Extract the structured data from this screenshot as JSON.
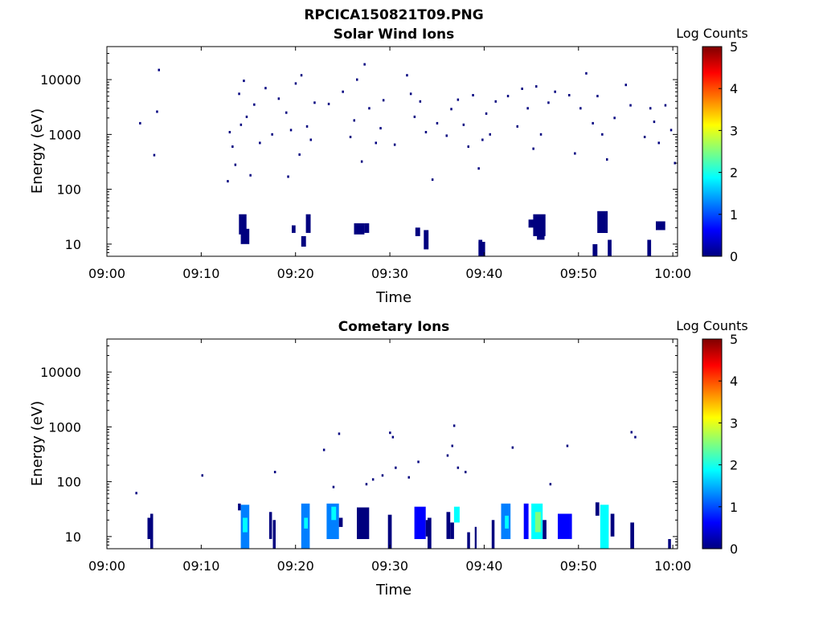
{
  "figure": {
    "title": "RPCICA150821T09.PNG"
  },
  "colormap": [
    "#00007f",
    "#0000ff",
    "#007fff",
    "#00ffff",
    "#7fff7f",
    "#ffff00",
    "#ff7f00",
    "#ff0000",
    "#7f0000"
  ],
  "chart_data": [
    {
      "type": "heatmap",
      "title": "Solar Wind Ions",
      "xlabel": "Time",
      "ylabel": "Energy (eV)",
      "x_tick_labels": [
        "09:00",
        "09:10",
        "09:20",
        "09:30",
        "09:40",
        "09:50",
        "10:00"
      ],
      "x_range_minutes": [
        0,
        60.5
      ],
      "y_scale": "log",
      "y_range": [
        6,
        40000
      ],
      "y_tick_labels": [
        "10",
        "100",
        "1000",
        "10000"
      ],
      "y_tick_values": [
        10,
        100,
        1000,
        10000
      ],
      "colorbar": {
        "label": "Log Counts",
        "range": [
          0,
          5
        ],
        "tick_labels": [
          "0",
          "1",
          "2",
          "3",
          "4",
          "5"
        ]
      },
      "points": [
        [
          3.5,
          1600,
          0.1
        ],
        [
          5.0,
          420,
          0.1
        ],
        [
          5.3,
          2600,
          0.1
        ],
        [
          5.5,
          15000,
          0.1
        ],
        [
          12.8,
          140,
          0.1
        ],
        [
          13.0,
          1100,
          0.2
        ],
        [
          13.3,
          600,
          0.2
        ],
        [
          13.6,
          280,
          0.2
        ],
        [
          14.0,
          5500,
          0.1
        ],
        [
          14.2,
          1500,
          0.1
        ],
        [
          14.5,
          9500,
          0.2
        ],
        [
          14.8,
          2100,
          0.1
        ],
        [
          15.2,
          180,
          0.1
        ],
        [
          15.6,
          3500,
          0.1
        ],
        [
          16.2,
          700,
          0.1
        ],
        [
          16.8,
          7000,
          0.1
        ],
        [
          17.5,
          1000,
          0.1
        ],
        [
          18.2,
          4500,
          0.1
        ],
        [
          19.0,
          2500,
          0.1
        ],
        [
          19.2,
          170,
          0.2
        ],
        [
          19.5,
          1200,
          0.1
        ],
        [
          20.0,
          8500,
          0.1
        ],
        [
          20.4,
          430,
          0.1
        ],
        [
          20.6,
          12000,
          0.1
        ],
        [
          21.2,
          1400,
          0.2
        ],
        [
          21.6,
          800,
          0.1
        ],
        [
          22.0,
          3800,
          0.1
        ],
        [
          23.5,
          3600,
          0.1
        ],
        [
          25.0,
          6000,
          0.1
        ],
        [
          25.8,
          900,
          0.2
        ],
        [
          26.2,
          1800,
          0.2
        ],
        [
          26.5,
          10000,
          0.1
        ],
        [
          27.0,
          320,
          0.1
        ],
        [
          27.3,
          19000,
          0.1
        ],
        [
          27.8,
          3000,
          0.1
        ],
        [
          28.5,
          700,
          0.2
        ],
        [
          29.0,
          1300,
          0.1
        ],
        [
          29.3,
          4200,
          0.1
        ],
        [
          30.5,
          650,
          0.1
        ],
        [
          31.8,
          12000,
          0.1
        ],
        [
          32.2,
          5500,
          0.1
        ],
        [
          32.6,
          2100,
          0.1
        ],
        [
          33.2,
          4000,
          0.1
        ],
        [
          33.8,
          1100,
          0.1
        ],
        [
          34.5,
          150,
          0.1
        ],
        [
          35.0,
          1600,
          0.1
        ],
        [
          36.0,
          950,
          0.1
        ],
        [
          36.5,
          2900,
          0.1
        ],
        [
          37.2,
          4300,
          0.1
        ],
        [
          37.8,
          1500,
          0.1
        ],
        [
          38.3,
          600,
          0.1
        ],
        [
          38.8,
          5200,
          0.1
        ],
        [
          39.4,
          240,
          0.1
        ],
        [
          39.8,
          800,
          0.1
        ],
        [
          40.2,
          2400,
          0.1
        ],
        [
          40.6,
          1000,
          0.1
        ],
        [
          41.2,
          4000,
          0.1
        ],
        [
          42.5,
          5000,
          0.1
        ],
        [
          43.5,
          1400,
          0.1
        ],
        [
          44.0,
          6800,
          0.1
        ],
        [
          44.6,
          3000,
          0.1
        ],
        [
          45.2,
          550,
          0.1
        ],
        [
          45.5,
          7500,
          0.1
        ],
        [
          46.0,
          1000,
          0.1
        ],
        [
          46.8,
          3800,
          0.1
        ],
        [
          47.5,
          6000,
          0.1
        ],
        [
          49.0,
          5200,
          0.1
        ],
        [
          49.6,
          450,
          0.1
        ],
        [
          50.2,
          3000,
          0.1
        ],
        [
          50.8,
          13000,
          0.1
        ],
        [
          51.5,
          1600,
          0.1
        ],
        [
          52.0,
          5000,
          0.1
        ],
        [
          52.5,
          1000,
          0.1
        ],
        [
          53.0,
          350,
          0.1
        ],
        [
          53.8,
          2000,
          0.1
        ],
        [
          55.0,
          8000,
          0.1
        ],
        [
          55.5,
          3400,
          0.1
        ],
        [
          57.0,
          900,
          0.1
        ],
        [
          57.6,
          3000,
          0.1
        ],
        [
          58.0,
          1700,
          0.1
        ],
        [
          58.5,
          700,
          0.1
        ],
        [
          59.2,
          3400,
          0.1
        ],
        [
          59.8,
          1200,
          0.1
        ],
        [
          60.2,
          300,
          0.1
        ]
      ],
      "blocks": [
        [
          14.0,
          14.8,
          15,
          35,
          0.1
        ],
        [
          14.2,
          15.1,
          10,
          19,
          0.2
        ],
        [
          19.6,
          20.0,
          16,
          22,
          0.1
        ],
        [
          20.6,
          21.1,
          9,
          14,
          0.1
        ],
        [
          21.1,
          21.6,
          16,
          35,
          0.2
        ],
        [
          26.2,
          27.3,
          15,
          24,
          0.2
        ],
        [
          27.3,
          27.8,
          16,
          24,
          0.1
        ],
        [
          32.7,
          33.2,
          14,
          20,
          0.1
        ],
        [
          33.6,
          34.1,
          8,
          18,
          0.2
        ],
        [
          39.4,
          40.1,
          6,
          11,
          0.1
        ],
        [
          39.4,
          39.8,
          6,
          12,
          0.1
        ],
        [
          44.7,
          45.2,
          20,
          28,
          0.1
        ],
        [
          45.2,
          46.5,
          14,
          35,
          0.3
        ],
        [
          45.6,
          46.4,
          12,
          18,
          0.2
        ],
        [
          51.5,
          52.0,
          6,
          10,
          0.1
        ],
        [
          52.0,
          53.1,
          16,
          40,
          0.2
        ],
        [
          53.1,
          53.5,
          6,
          12,
          0.1
        ],
        [
          57.3,
          57.7,
          6,
          12,
          0.1
        ],
        [
          58.2,
          59.2,
          18,
          26,
          0.1
        ]
      ]
    },
    {
      "type": "heatmap",
      "title": "Cometary Ions",
      "xlabel": "Time",
      "ylabel": "Energy (eV)",
      "x_tick_labels": [
        "09:00",
        "09:10",
        "09:20",
        "09:30",
        "09:40",
        "09:50",
        "10:00"
      ],
      "x_range_minutes": [
        0,
        60.5
      ],
      "y_scale": "log",
      "y_range": [
        6,
        40000
      ],
      "y_tick_labels": [
        "10",
        "100",
        "1000",
        "10000"
      ],
      "y_tick_values": [
        10,
        100,
        1000,
        10000
      ],
      "colorbar": {
        "label": "Log Counts",
        "range": [
          0,
          5
        ],
        "tick_labels": [
          "0",
          "1",
          "2",
          "3",
          "4",
          "5"
        ]
      },
      "points": [
        [
          3.1,
          62,
          0.1
        ],
        [
          10.1,
          130,
          0.1
        ],
        [
          17.8,
          150,
          0.1
        ],
        [
          23.0,
          380,
          0.1
        ],
        [
          24.0,
          80,
          0.1
        ],
        [
          24.6,
          750,
          0.1
        ],
        [
          27.5,
          90,
          0.1
        ],
        [
          28.2,
          110,
          0.1
        ],
        [
          29.2,
          130,
          0.1
        ],
        [
          30.0,
          780,
          0.1
        ],
        [
          30.3,
          650,
          0.1
        ],
        [
          30.6,
          180,
          0.1
        ],
        [
          32.0,
          120,
          0.1
        ],
        [
          33.0,
          230,
          0.1
        ],
        [
          36.1,
          300,
          0.1
        ],
        [
          36.6,
          450,
          0.1
        ],
        [
          36.8,
          1050,
          0.1
        ],
        [
          37.2,
          180,
          0.1
        ],
        [
          38.0,
          150,
          0.1
        ],
        [
          43.0,
          420,
          0.1
        ],
        [
          47.0,
          90,
          0.1
        ],
        [
          48.8,
          450,
          0.1
        ],
        [
          55.6,
          800,
          0.1
        ],
        [
          56.0,
          650,
          0.1
        ]
      ],
      "blocks": [
        [
          4.3,
          4.6,
          9,
          22,
          0.1
        ],
        [
          4.6,
          4.9,
          6,
          26,
          0.3
        ],
        [
          13.9,
          14.2,
          30,
          40,
          0.2
        ],
        [
          14.2,
          15.1,
          6,
          38,
          1.4
        ],
        [
          14.4,
          14.9,
          12,
          22,
          1.9
        ],
        [
          17.2,
          17.5,
          9,
          28,
          0.1
        ],
        [
          17.6,
          17.9,
          6,
          20,
          0.2
        ],
        [
          20.6,
          21.5,
          6,
          40,
          1.2
        ],
        [
          20.9,
          21.3,
          14,
          22,
          1.8
        ],
        [
          23.3,
          24.6,
          9,
          40,
          1.3
        ],
        [
          23.8,
          24.3,
          20,
          35,
          2.0
        ],
        [
          24.6,
          25.0,
          15,
          22,
          0.2
        ],
        [
          26.5,
          27.8,
          9,
          34,
          0.3
        ],
        [
          29.8,
          30.2,
          6,
          25,
          0.3
        ],
        [
          32.6,
          33.8,
          9,
          35,
          0.4
        ],
        [
          33.8,
          34.2,
          10,
          20,
          0.1
        ],
        [
          34.0,
          34.4,
          6,
          22,
          0.1
        ],
        [
          36.0,
          36.4,
          9,
          28,
          0.3
        ],
        [
          36.8,
          37.4,
          18,
          35,
          1.8
        ],
        [
          36.4,
          36.8,
          9,
          18,
          0.2
        ],
        [
          38.2,
          38.5,
          6,
          12,
          0.1
        ],
        [
          39.0,
          39.2,
          6,
          15,
          0.1
        ],
        [
          40.8,
          41.1,
          6,
          20,
          0.1
        ],
        [
          41.8,
          42.8,
          9,
          40,
          1.2
        ],
        [
          42.2,
          42.6,
          14,
          24,
          1.8
        ],
        [
          44.2,
          44.7,
          9,
          40,
          0.5
        ],
        [
          45.0,
          46.2,
          9,
          40,
          1.6
        ],
        [
          45.4,
          46.0,
          12,
          28,
          2.2
        ],
        [
          46.2,
          46.6,
          9,
          20,
          0.3
        ],
        [
          47.8,
          49.3,
          9,
          26,
          0.4
        ],
        [
          51.8,
          52.2,
          24,
          42,
          0.2
        ],
        [
          52.3,
          53.2,
          6,
          38,
          1.6
        ],
        [
          52.5,
          53.0,
          20,
          32,
          2.0
        ],
        [
          53.4,
          53.8,
          10,
          26,
          0.1
        ],
        [
          55.5,
          55.9,
          6,
          18,
          0.1
        ],
        [
          59.5,
          59.8,
          6,
          9,
          0.1
        ]
      ]
    }
  ]
}
